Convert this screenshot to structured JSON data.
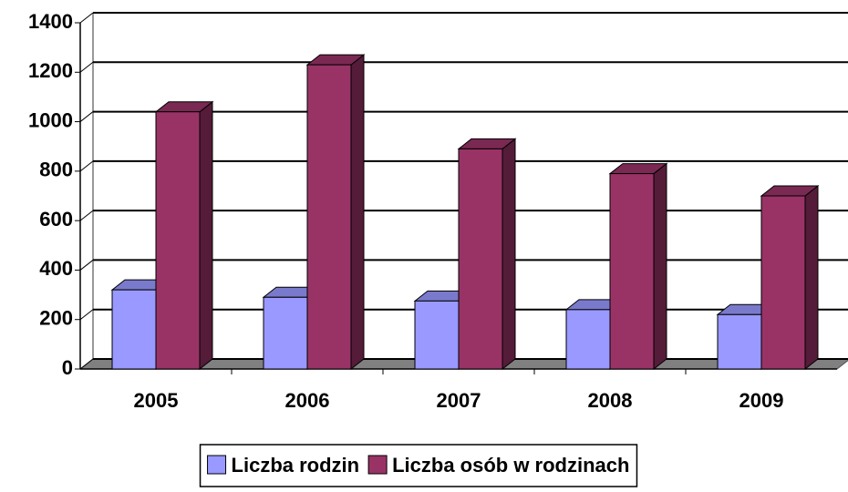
{
  "chart_data": {
    "type": "bar3d",
    "categories": [
      "2005",
      "2006",
      "2007",
      "2008",
      "2009"
    ],
    "series": [
      {
        "name": "Liczba rodzin",
        "color": "#9999ff",
        "values": [
          320,
          290,
          275,
          240,
          220
        ]
      },
      {
        "name": "Liczba osób w rodzinach",
        "color": "#993366",
        "values": [
          1040,
          1230,
          890,
          790,
          700
        ]
      }
    ],
    "ylim": [
      0,
      1400
    ],
    "yticks": [
      0,
      200,
      400,
      600,
      800,
      1000,
      1200,
      1400
    ],
    "grid": true,
    "legend": "bottom"
  }
}
